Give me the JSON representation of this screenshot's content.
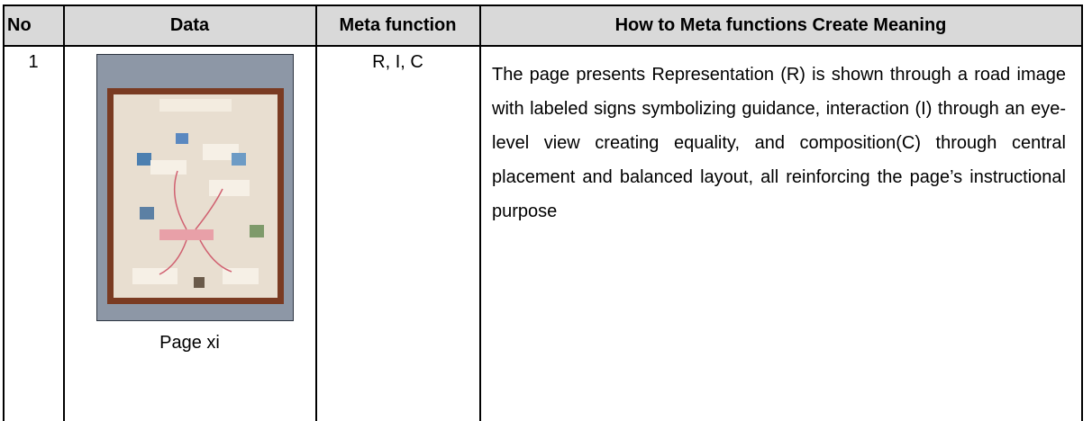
{
  "table": {
    "headers": [
      "No",
      "Data",
      "Meta function",
      "How to Meta functions Create Meaning"
    ],
    "rows": [
      [
        "1",
        "Page xi",
        "R, I, C",
        "The page presents Representation (R) is shown through a road image with labeled signs symbolizing guidance, interaction (I) through an eye-level view creating equality, and composition(C) through central placement and balanced layout, all reinforcing the page’s instructional purpose"
      ]
    ]
  }
}
